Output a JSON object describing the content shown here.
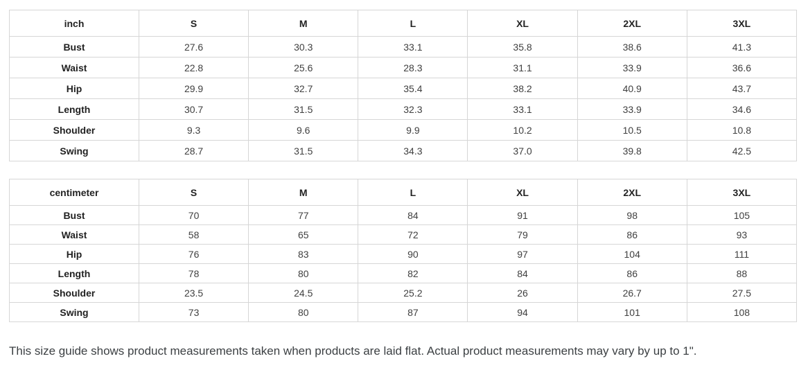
{
  "tables": [
    {
      "unit_label": "inch",
      "columns": [
        "S",
        "M",
        "L",
        "XL",
        "2XL",
        "3XL"
      ],
      "rows": [
        {
          "label": "Bust",
          "values": [
            "27.6",
            "30.3",
            "33.1",
            "35.8",
            "38.6",
            "41.3"
          ]
        },
        {
          "label": "Waist",
          "values": [
            "22.8",
            "25.6",
            "28.3",
            "31.1",
            "33.9",
            "36.6"
          ]
        },
        {
          "label": "Hip",
          "values": [
            "29.9",
            "32.7",
            "35.4",
            "38.2",
            "40.9",
            "43.7"
          ]
        },
        {
          "label": "Length",
          "values": [
            "30.7",
            "31.5",
            "32.3",
            "33.1",
            "33.9",
            "34.6"
          ]
        },
        {
          "label": "Shoulder",
          "values": [
            "9.3",
            "9.6",
            "9.9",
            "10.2",
            "10.5",
            "10.8"
          ]
        },
        {
          "label": "Swing",
          "values": [
            "28.7",
            "31.5",
            "34.3",
            "37.0",
            "39.8",
            "42.5"
          ]
        }
      ]
    },
    {
      "unit_label": "centimeter",
      "columns": [
        "S",
        "M",
        "L",
        "XL",
        "2XL",
        "3XL"
      ],
      "rows": [
        {
          "label": "Bust",
          "values": [
            "70",
            "77",
            "84",
            "91",
            "98",
            "105"
          ]
        },
        {
          "label": "Waist",
          "values": [
            "58",
            "65",
            "72",
            "79",
            "86",
            "93"
          ]
        },
        {
          "label": "Hip",
          "values": [
            "76",
            "83",
            "90",
            "97",
            "104",
            "111"
          ]
        },
        {
          "label": "Length",
          "values": [
            "78",
            "80",
            "82",
            "84",
            "86",
            "88"
          ]
        },
        {
          "label": "Shoulder",
          "values": [
            "23.5",
            "24.5",
            "25.2",
            "26",
            "26.7",
            "27.5"
          ]
        },
        {
          "label": "Swing",
          "values": [
            "73",
            "80",
            "87",
            "94",
            "101",
            "108"
          ]
        }
      ]
    }
  ],
  "note": "This size guide shows product measurements taken when products are laid flat. Actual product measurements may vary by up to 1\".",
  "colors": {
    "border": "#d6d6d6",
    "header_text": "#222222",
    "value_text": "#3f3f3f",
    "note_text": "#3c4043"
  }
}
